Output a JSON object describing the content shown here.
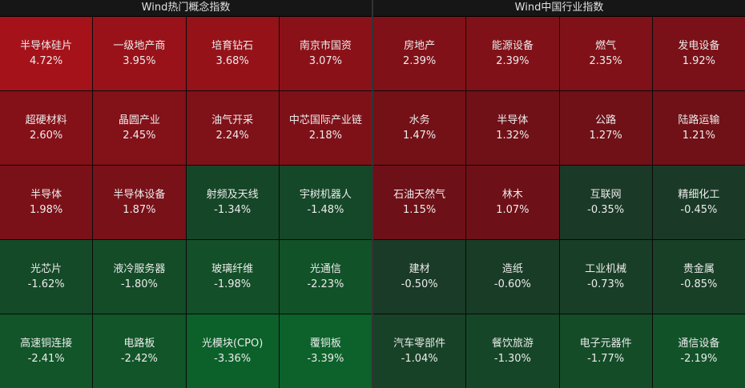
{
  "panels": [
    {
      "title": "Wind热门概念指数",
      "cells": [
        {
          "name": "半导体硅片",
          "change": "4.72%"
        },
        {
          "name": "一级地产商",
          "change": "3.95%"
        },
        {
          "name": "培育钻石",
          "change": "3.68%"
        },
        {
          "name": "南京市国资",
          "change": "3.07%"
        },
        {
          "name": "超硬材料",
          "change": "2.60%"
        },
        {
          "name": "晶圆产业",
          "change": "2.45%"
        },
        {
          "name": "油气开采",
          "change": "2.24%"
        },
        {
          "name": "中芯国际产业链",
          "change": "2.18%"
        },
        {
          "name": "半导体",
          "change": "1.98%"
        },
        {
          "name": "半导体设备",
          "change": "1.87%"
        },
        {
          "name": "射频及天线",
          "change": "-1.34%"
        },
        {
          "name": "宇树机器人",
          "change": "-1.48%"
        },
        {
          "name": "光芯片",
          "change": "-1.62%"
        },
        {
          "name": "液冷服务器",
          "change": "-1.80%"
        },
        {
          "name": "玻璃纤维",
          "change": "-1.98%"
        },
        {
          "name": "光通信",
          "change": "-2.23%"
        },
        {
          "name": "高速铜连接",
          "change": "-2.41%"
        },
        {
          "name": "电路板",
          "change": "-2.42%"
        },
        {
          "name": "光模块(CPO)",
          "change": "-3.36%"
        },
        {
          "name": "覆铜板",
          "change": "-3.39%"
        }
      ]
    },
    {
      "title": "Wind中国行业指数",
      "cells": [
        {
          "name": "房地产",
          "change": "2.39%"
        },
        {
          "name": "能源设备",
          "change": "2.39%"
        },
        {
          "name": "燃气",
          "change": "2.35%"
        },
        {
          "name": "发电设备",
          "change": "1.92%"
        },
        {
          "name": "水务",
          "change": "1.47%"
        },
        {
          "name": "半导体",
          "change": "1.32%"
        },
        {
          "name": "公路",
          "change": "1.27%"
        },
        {
          "name": "陆路运输",
          "change": "1.21%"
        },
        {
          "name": "石油天然气",
          "change": "1.15%"
        },
        {
          "name": "林木",
          "change": "1.07%"
        },
        {
          "name": "互联网",
          "change": "-0.35%"
        },
        {
          "name": "精细化工",
          "change": "-0.45%"
        },
        {
          "name": "建材",
          "change": "-0.50%"
        },
        {
          "name": "造纸",
          "change": "-0.60%"
        },
        {
          "name": "工业机械",
          "change": "-0.73%"
        },
        {
          "name": "贵金属",
          "change": "-0.85%"
        },
        {
          "name": "汽车零部件",
          "change": "-1.04%"
        },
        {
          "name": "餐饮旅游",
          "change": "-1.30%"
        },
        {
          "name": "电子元器件",
          "change": "-1.77%"
        },
        {
          "name": "通信设备",
          "change": "-2.19%"
        }
      ]
    }
  ]
}
